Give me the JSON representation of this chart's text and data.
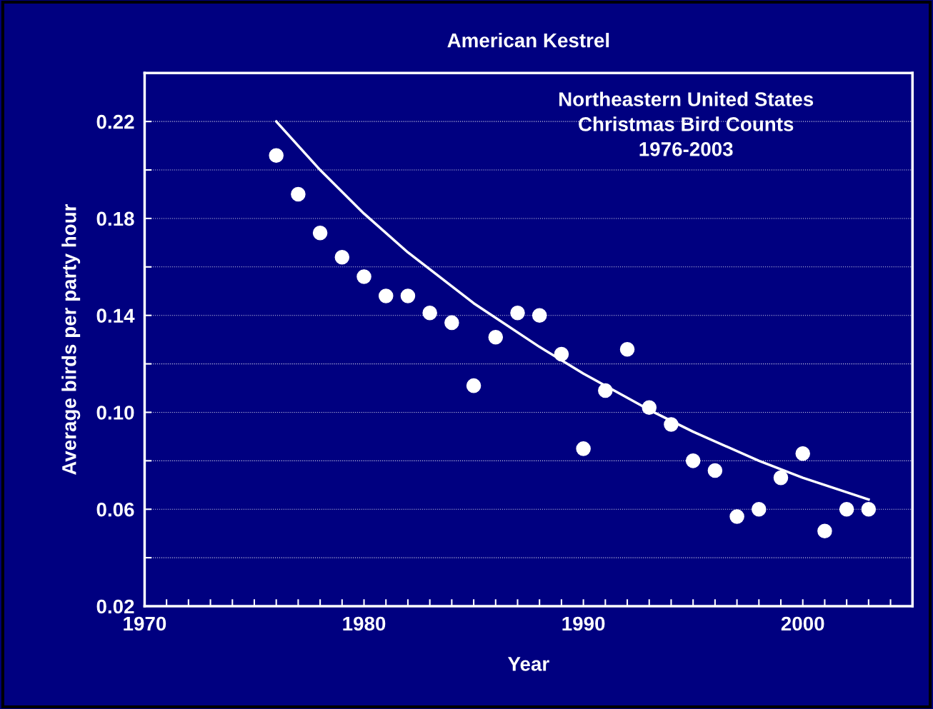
{
  "chart_data": {
    "type": "scatter",
    "title": "American Kestrel",
    "xlabel": "Year",
    "ylabel": "Average birds per party hour",
    "annotations": [
      "Northeastern United States\nChristmas Bird Counts\n1976-2003"
    ],
    "x": [
      1976,
      1977,
      1978,
      1979,
      1980,
      1981,
      1982,
      1983,
      1984,
      1985,
      1986,
      1987,
      1988,
      1989,
      1990,
      1991,
      1992,
      1993,
      1994,
      1995,
      1996,
      1997,
      1998,
      1999,
      2000,
      2001,
      2002,
      2003
    ],
    "series": [
      {
        "color": "#ffffff",
        "marker": "circle",
        "values": [
          0.206,
          0.19,
          0.174,
          0.164,
          0.156,
          0.148,
          0.148,
          0.141,
          0.137,
          0.111,
          0.131,
          0.141,
          0.14,
          0.124,
          0.085,
          0.109,
          0.126,
          0.102,
          0.095,
          0.08,
          0.076,
          0.057,
          0.06,
          0.073,
          0.083,
          0.051,
          0.06,
          0.06
        ]
      },
      {
        "type": "line",
        "color": "#ffffff",
        "line_style": "solid",
        "x": [
          1976,
          1978,
          1980,
          1982,
          1985,
          1988,
          1990,
          1993,
          1995,
          1998,
          2000,
          2003
        ],
        "values": [
          0.22,
          0.2,
          0.182,
          0.166,
          0.145,
          0.127,
          0.116,
          0.101,
          0.092,
          0.08,
          0.073,
          0.064
        ]
      }
    ],
    "xlim": [
      1970,
      2005
    ],
    "ylim": [
      0.02,
      0.24
    ],
    "xticks": [
      1970,
      {
        "value": 1971,
        "label": null
      },
      {
        "value": 1972,
        "label": null
      },
      {
        "value": 1973,
        "label": null
      },
      {
        "value": 1974,
        "label": null
      },
      {
        "value": 1975,
        "label": null
      },
      {
        "value": 1976,
        "label": null
      },
      {
        "value": 1977,
        "label": null
      },
      {
        "value": 1978,
        "label": null
      },
      {
        "value": 1979,
        "label": null
      },
      1980,
      {
        "value": 1981,
        "label": null
      },
      {
        "value": 1982,
        "label": null
      },
      {
        "value": 1983,
        "label": null
      },
      {
        "value": 1984,
        "label": null
      },
      {
        "value": 1985,
        "label": null
      },
      {
        "value": 1986,
        "label": null
      },
      {
        "value": 1987,
        "label": null
      },
      {
        "value": 1988,
        "label": null
      },
      {
        "value": 1989,
        "label": null
      },
      1990,
      {
        "value": 1991,
        "label": null
      },
      {
        "value": 1992,
        "label": null
      },
      {
        "value": 1993,
        "label": null
      },
      {
        "value": 1994,
        "label": null
      },
      {
        "value": 1995,
        "label": null
      },
      {
        "value": 1996,
        "label": null
      },
      {
        "value": 1997,
        "label": null
      },
      {
        "value": 1998,
        "label": null
      },
      {
        "value": 1999,
        "label": null
      },
      2000,
      {
        "value": 2001,
        "label": null
      },
      {
        "value": 2002,
        "label": null
      },
      {
        "value": 2003,
        "label": null
      },
      {
        "value": 2004,
        "label": null
      }
    ],
    "yticks": [
      {
        "value": 0.02,
        "label": "0.02"
      },
      {
        "value": 0.04,
        "label": null
      },
      {
        "value": 0.06,
        "label": "0.06"
      },
      {
        "value": 0.08,
        "label": null
      },
      {
        "value": 0.1,
        "label": "0.10"
      },
      {
        "value": 0.12,
        "label": null
      },
      {
        "value": 0.14,
        "label": "0.14"
      },
      {
        "value": 0.16,
        "label": null
      },
      {
        "value": 0.18,
        "label": "0.18"
      },
      {
        "value": 0.2,
        "label": null
      },
      {
        "value": 0.22,
        "label": "0.22"
      }
    ],
    "grid": "y",
    "legend": false
  }
}
